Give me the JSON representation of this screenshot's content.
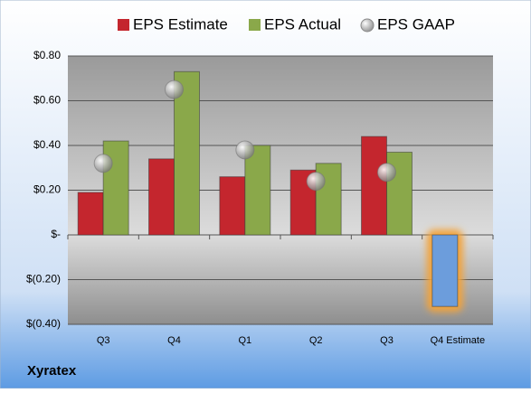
{
  "chart_data": {
    "type": "bar",
    "title": "Xyratex",
    "categories": [
      "Q3",
      "Q4",
      "Q1",
      "Q2",
      "Q3",
      "Q4 Estimate"
    ],
    "series": [
      {
        "name": "EPS Estimate",
        "color": "#c4262e",
        "values": [
          0.19,
          0.34,
          0.26,
          0.29,
          0.44,
          -0.32
        ]
      },
      {
        "name": "EPS Actual",
        "color": "#8aa84a",
        "values": [
          0.42,
          0.73,
          0.4,
          0.32,
          0.37,
          null
        ]
      },
      {
        "name": "EPS GAAP",
        "color": "#a8a8a8",
        "type": "scatter",
        "values": [
          0.32,
          0.65,
          0.38,
          0.24,
          0.28,
          null
        ]
      }
    ],
    "highlight": {
      "series": 0,
      "index": 5,
      "color": "#6c9ddc",
      "glow": "#f2a33a"
    },
    "ylim": [
      -0.4,
      0.8
    ],
    "yticks": [
      {
        "value": -0.4,
        "label": "$(0.40)"
      },
      {
        "value": -0.2,
        "label": "$(0.20)"
      },
      {
        "value": 0,
        "label": "$-"
      },
      {
        "value": 0.2,
        "label": "$0.20"
      },
      {
        "value": 0.4,
        "label": "$0.40"
      },
      {
        "value": 0.6,
        "label": "$0.60"
      },
      {
        "value": 0.8,
        "label": "$0.80"
      }
    ],
    "grid": true,
    "legend": "top"
  }
}
